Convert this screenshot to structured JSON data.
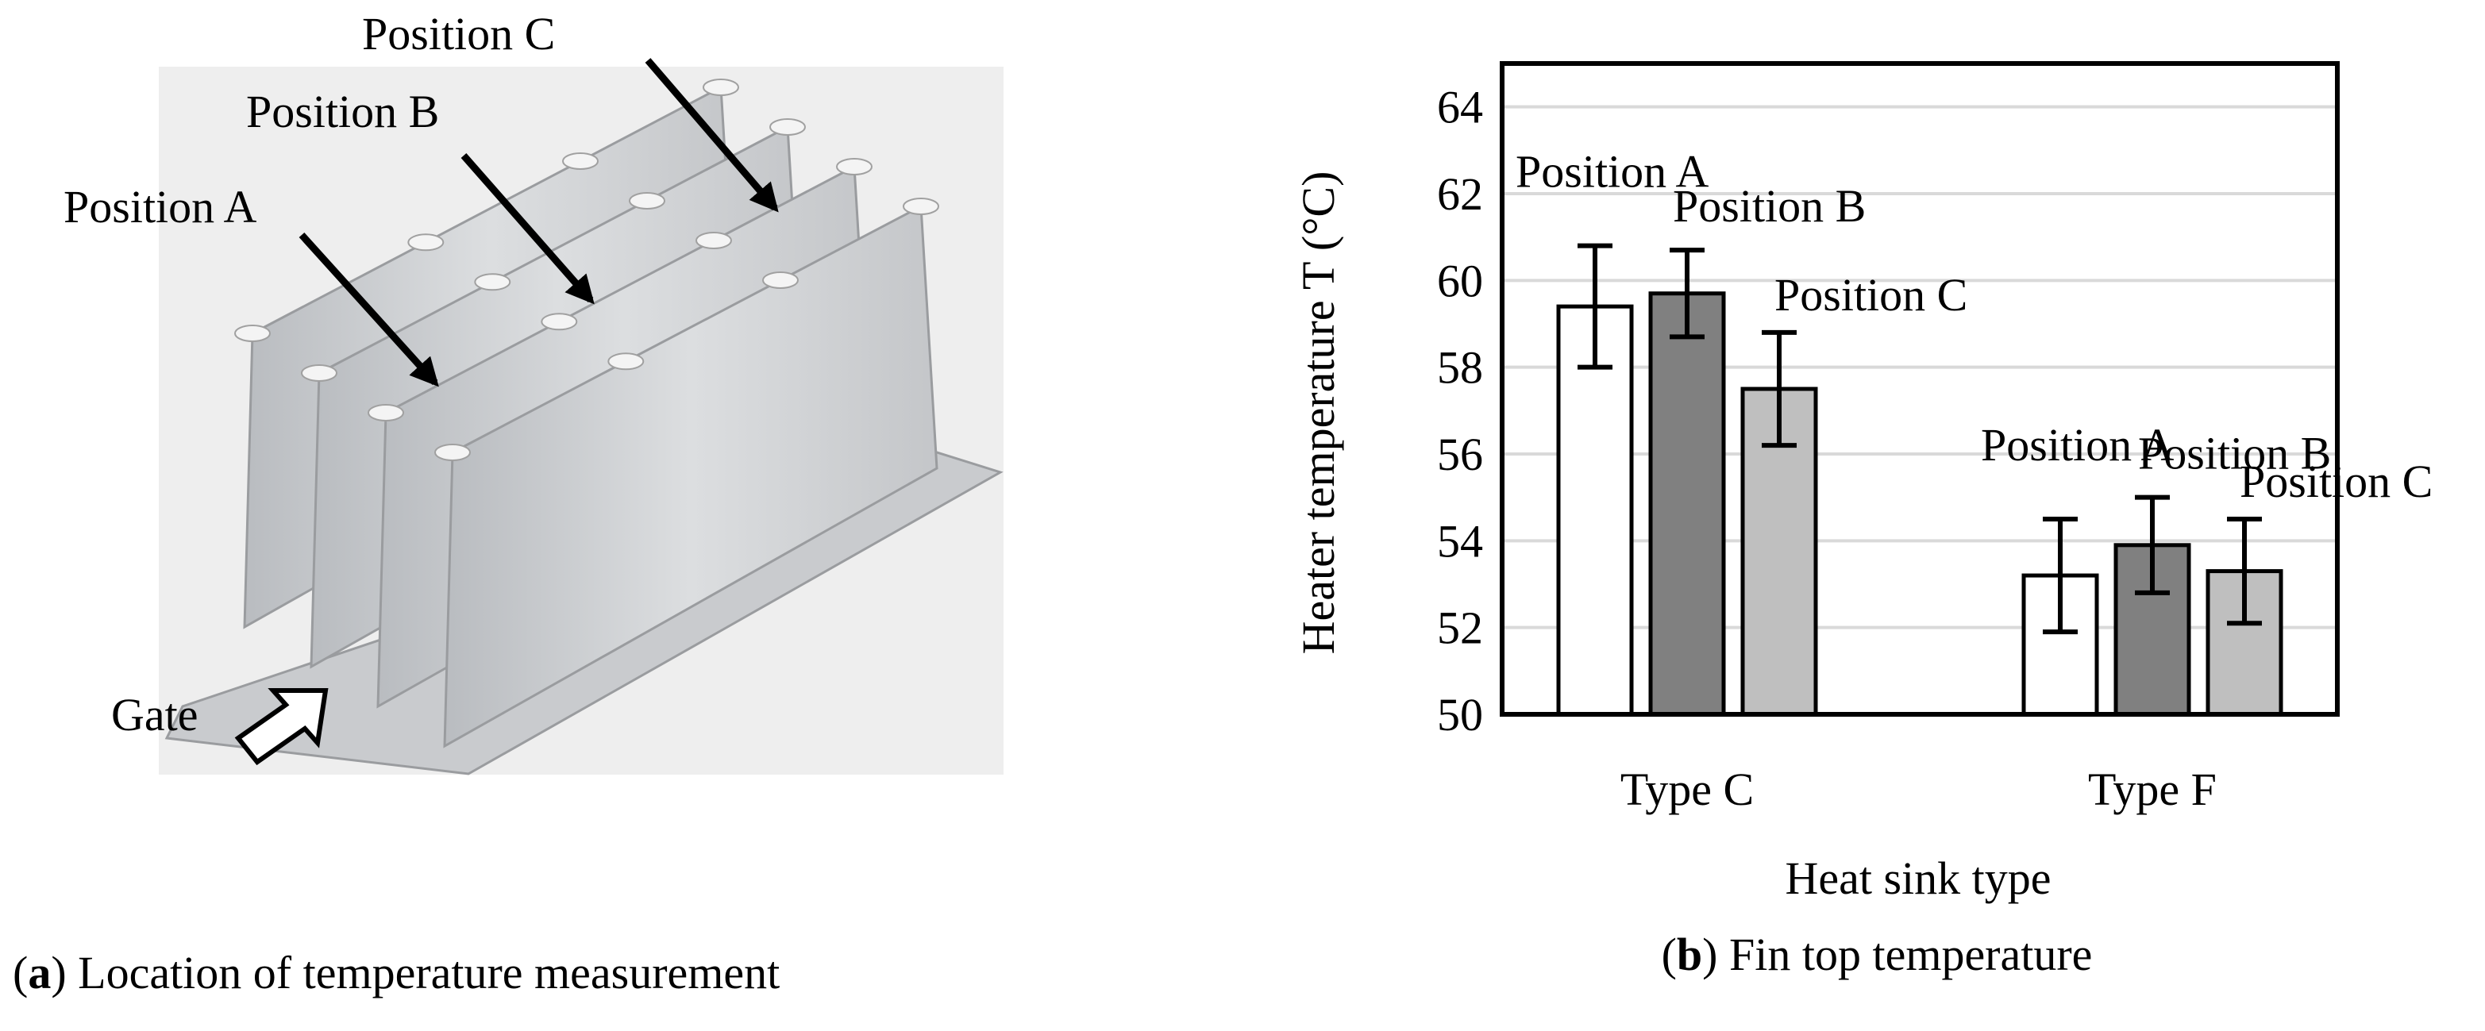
{
  "panel_a": {
    "labels": [
      "Position A",
      "Position B",
      "Position C",
      "Gate"
    ],
    "caption": {
      "open": "(",
      "letter": "a",
      "rest": ") Location of temperature measurement"
    }
  },
  "chart_data": {
    "type": "bar",
    "y_label": "Heater temperature T (°C)",
    "x_label": "Heat sink type",
    "caption": {
      "open": "(",
      "letter": "b",
      "rest": ") Fin top temperature"
    },
    "categories": [
      "Type C",
      "Type F"
    ],
    "series": [
      {
        "name": "Position A",
        "color": "#ffffff",
        "values": [
          59.4,
          53.2
        ],
        "errors": [
          1.4,
          1.3
        ]
      },
      {
        "name": "Position B",
        "color": "#808080",
        "values": [
          59.7,
          53.9
        ],
        "errors": [
          1.0,
          1.1
        ]
      },
      {
        "name": "Position C",
        "color": "#bfbfbf",
        "values": [
          57.5,
          53.3
        ],
        "errors": [
          1.3,
          1.2
        ]
      }
    ],
    "ylim": [
      50,
      65
    ],
    "yticks": [
      50,
      52,
      54,
      56,
      58,
      60,
      62,
      64
    ],
    "grid": true
  }
}
